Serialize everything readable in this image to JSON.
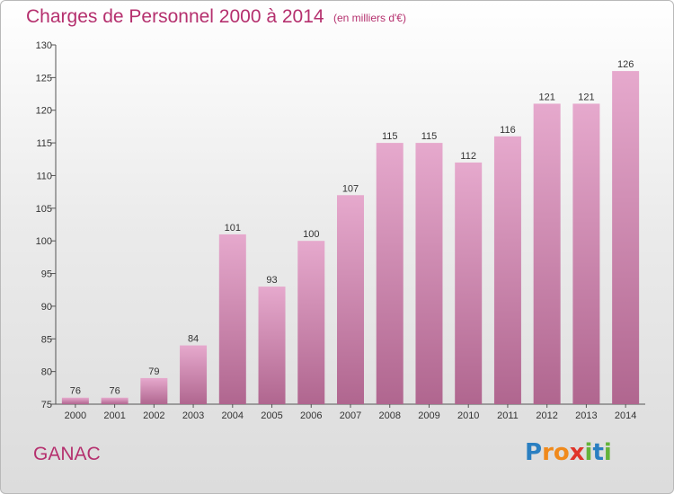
{
  "chart_title": "Charges de Personnel 2000 à 2014",
  "chart_unit": "(en milliers d'€)",
  "commune": "GANAC",
  "logo": {
    "letters": [
      "P",
      "r",
      "o",
      "x",
      "i",
      "t",
      "i"
    ],
    "colors": [
      "#2a7fc1",
      "#f08a1c",
      "#f08a1c",
      "#e0352b",
      "#64b33a",
      "#2a7fc1",
      "#64b33a"
    ]
  },
  "colors": {
    "bar_top": "#e6a9cd",
    "bar_bottom": "#b0668f",
    "accent": "#b5306e"
  },
  "chart_data": {
    "type": "bar",
    "categories": [
      "2000",
      "2001",
      "2002",
      "2003",
      "2004",
      "2005",
      "2006",
      "2007",
      "2008",
      "2009",
      "2010",
      "2011",
      "2012",
      "2013",
      "2014"
    ],
    "values": [
      76,
      76,
      79,
      84,
      101,
      93,
      100,
      107,
      115,
      115,
      112,
      116,
      121,
      121,
      126
    ],
    "ylim": [
      75,
      130
    ],
    "yticks": [
      75,
      80,
      85,
      90,
      95,
      100,
      105,
      110,
      115,
      120,
      125,
      130
    ],
    "grid": false
  }
}
